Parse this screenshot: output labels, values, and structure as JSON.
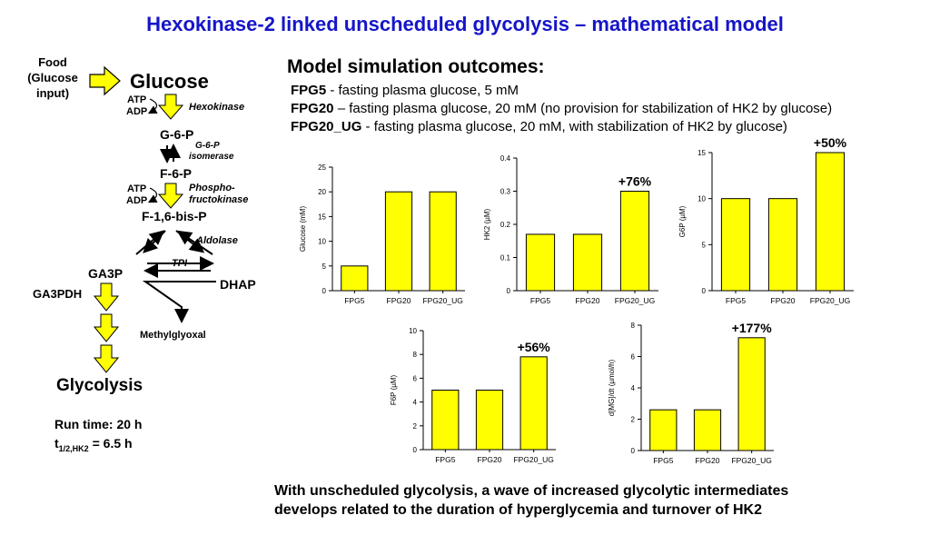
{
  "title": "Hexokinase-2 linked unscheduled glycolysis – mathematical model",
  "pathway": {
    "food": [
      "Food",
      "(Glucose",
      "input)"
    ],
    "glucose": "Glucose",
    "atp": "ATP",
    "adp": "ADP",
    "hexokinase": "Hexokinase",
    "g6p": "G-6-P",
    "g6p_isomerase": [
      "G-6-P",
      "isomerase"
    ],
    "f6p": "F-6-P",
    "phosphofructokinase": [
      "Phospho-",
      "fructokinase"
    ],
    "f16bp": "F-1,6-bis-P",
    "aldolase": "Aldolase",
    "tpi": "TPI",
    "ga3p": "GA3P",
    "dhap": "DHAP",
    "ga3pdh": "GA3PDH",
    "methylglyoxal": "Methylglyoxal",
    "glycolysis": "Glycolysis",
    "run_time": "Run time: 20 h",
    "half_life_prefix": "t",
    "half_life_sub": "1/2,HK2",
    "half_life_value": " = 6.5 h"
  },
  "simulation": {
    "heading": "Model simulation outcomes:",
    "definitions": [
      {
        "term": "FPG5",
        "text": " - fasting plasma glucose, 5 mM"
      },
      {
        "term": "FPG20",
        "text": " – fasting plasma glucose, 20 mM (no provision for stabilization of HK2 by glucose)"
      },
      {
        "term": "FPG20_UG",
        "text": " - fasting plasma glucose, 20 mM, with stabilization of HK2 by glucose)"
      }
    ]
  },
  "chart_data": [
    {
      "type": "bar",
      "categories": [
        "FPG5",
        "FPG20",
        "FPG20_UG"
      ],
      "values": [
        5,
        20,
        20
      ],
      "ylabel": "Glucose (mM)",
      "ylim": [
        0,
        25
      ],
      "yticks": [
        0,
        5,
        10,
        15,
        20,
        25
      ],
      "annotation": "",
      "bar_color": "#ffff00"
    },
    {
      "type": "bar",
      "categories": [
        "FPG5",
        "FPG20",
        "FPG20_UG"
      ],
      "values": [
        0.17,
        0.17,
        0.3
      ],
      "ylabel": "HK2 (µM)",
      "ylim": [
        0,
        0.4
      ],
      "yticks": [
        0,
        0.1,
        0.2,
        0.3,
        0.4
      ],
      "annotation": "+76%",
      "bar_color": "#ffff00"
    },
    {
      "type": "bar",
      "categories": [
        "FPG5",
        "FPG20",
        "FPG20_UG"
      ],
      "values": [
        10,
        10,
        15
      ],
      "ylabel": "G6P (µM)",
      "ylim": [
        0,
        15
      ],
      "yticks": [
        0,
        5,
        10,
        15
      ],
      "annotation": "+50%",
      "bar_color": "#ffff00"
    },
    {
      "type": "bar",
      "categories": [
        "FPG5",
        "FPG20",
        "FPG20_UG"
      ],
      "values": [
        5,
        5,
        7.8
      ],
      "ylabel": "F6P (µM)",
      "ylim": [
        0,
        10
      ],
      "yticks": [
        0,
        2,
        4,
        6,
        8,
        10
      ],
      "annotation": "+56%",
      "bar_color": "#ffff00"
    },
    {
      "type": "bar",
      "categories": [
        "FPG5",
        "FPG20",
        "FPG20_UG"
      ],
      "values": [
        2.6,
        2.6,
        7.2
      ],
      "ylabel": "d[MG]/dt (µmol/h)",
      "ylim": [
        0,
        8
      ],
      "yticks": [
        0,
        2,
        4,
        6,
        8
      ],
      "annotation": "+177%",
      "bar_color": "#ffff00"
    }
  ],
  "conclusion": [
    "With unscheduled glycolysis, a wave of increased glycolytic intermediates",
    "develops related to the duration of hyperglycemia and turnover of HK2"
  ]
}
